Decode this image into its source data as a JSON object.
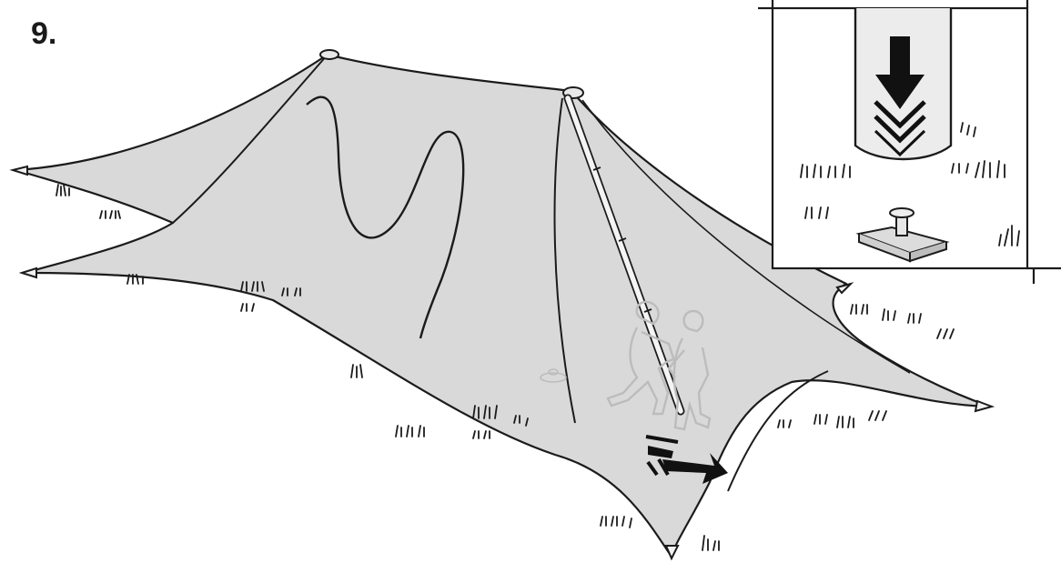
{
  "step": {
    "number": "9."
  },
  "colors": {
    "canvas": "#fcfcfc",
    "tent": "#d9d9d9",
    "outline": "#1b1b1b",
    "arrow": "#111111",
    "figure_outline": "#bcbcbc"
  },
  "icons": {
    "downward_arrow": "down-arrow-icon",
    "push_arrow": "push-arrow-icon",
    "ground_stake": "ground-anchor-icon"
  }
}
